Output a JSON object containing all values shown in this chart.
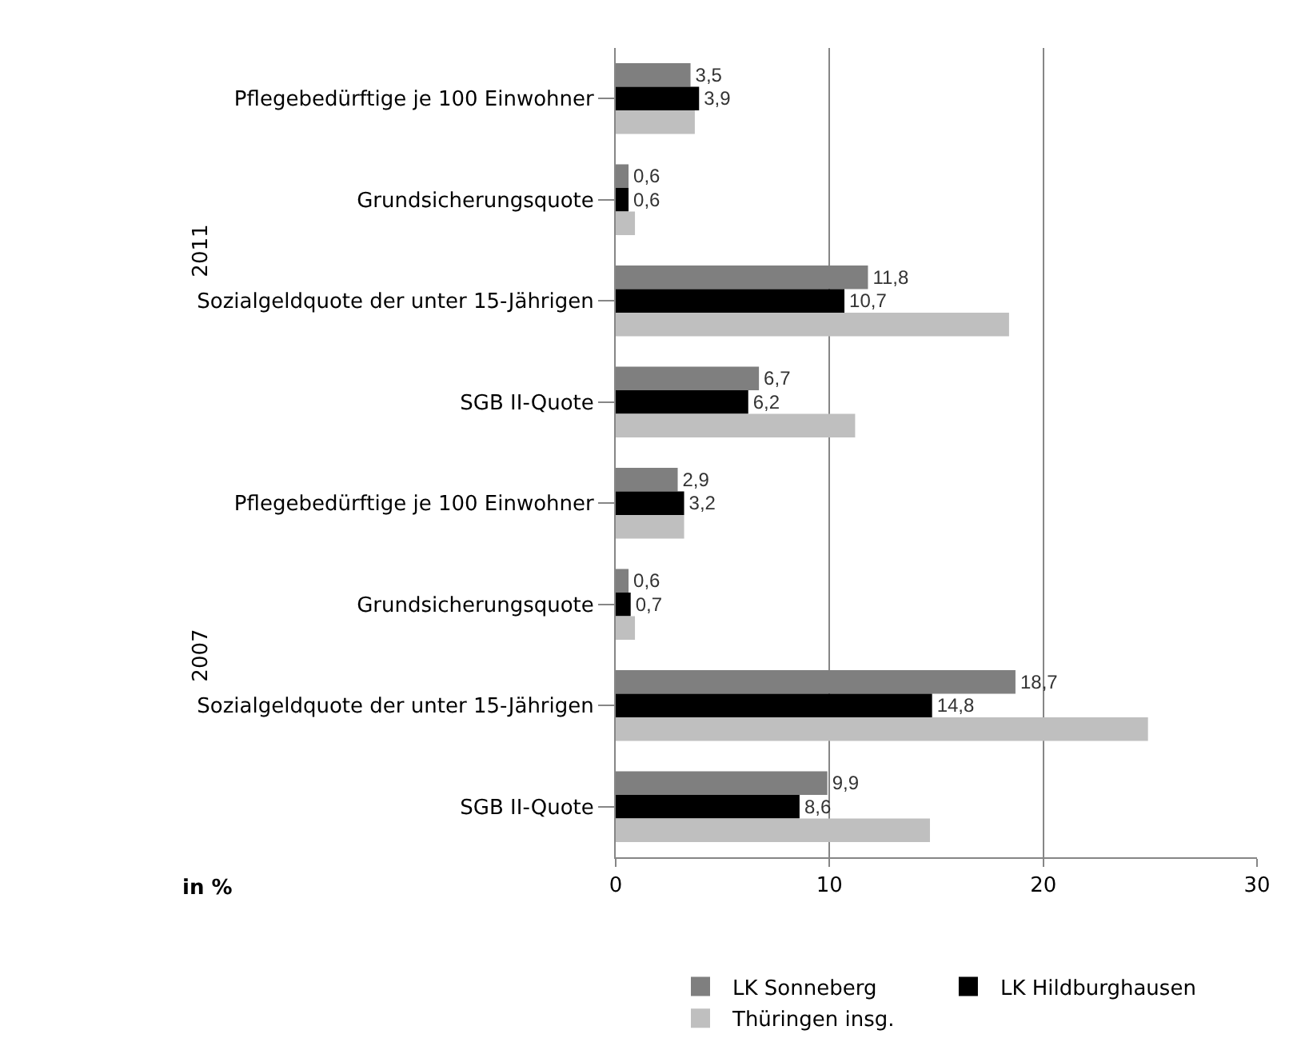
{
  "chart_data": {
    "type": "bar",
    "orientation": "horizontal",
    "categories": [
      "Pflegebedürftige je 100 Einwohner",
      "Grundsicherungsquote",
      "Sozialgeldquote der unter 15-Jährigen",
      "SGB II-Quote",
      "Pflegebedürftige je 100 Einwohner",
      "Grundsicherungsquote",
      "Sozialgeldquote der unter 15-Jährigen",
      "SGB II-Quote"
    ],
    "series": [
      {
        "name": "LK Sonneberg",
        "color": "#7f7f7f",
        "values": [
          3.5,
          0.6,
          11.8,
          6.7,
          2.9,
          0.6,
          18.7,
          9.9
        ],
        "value_labels": [
          "3,5",
          "0,6",
          "11,8",
          "6,7",
          "2,9",
          "0,6",
          "18,7",
          "9,9"
        ]
      },
      {
        "name": "LK Hildburghausen",
        "color": "#000000",
        "values": [
          3.9,
          0.6,
          10.7,
          6.2,
          3.2,
          0.7,
          14.8,
          8.6
        ],
        "value_labels": [
          "3,9",
          "0,6",
          "10,7",
          "6,2",
          "3,2",
          "0,7",
          "14,8",
          "8,6"
        ]
      },
      {
        "name": "Thüringen insg.",
        "color": "#bfbfbf",
        "values": [
          3.7,
          0.9,
          18.4,
          11.2,
          3.2,
          0.9,
          24.9,
          14.7
        ]
      }
    ],
    "xlabel": "in %",
    "annotations": [
      "2011",
      "2007"
    ],
    "xlim": [
      0,
      30
    ],
    "xticks": [
      0,
      10,
      20,
      30
    ],
    "grid": "x",
    "legend": "bottom"
  }
}
